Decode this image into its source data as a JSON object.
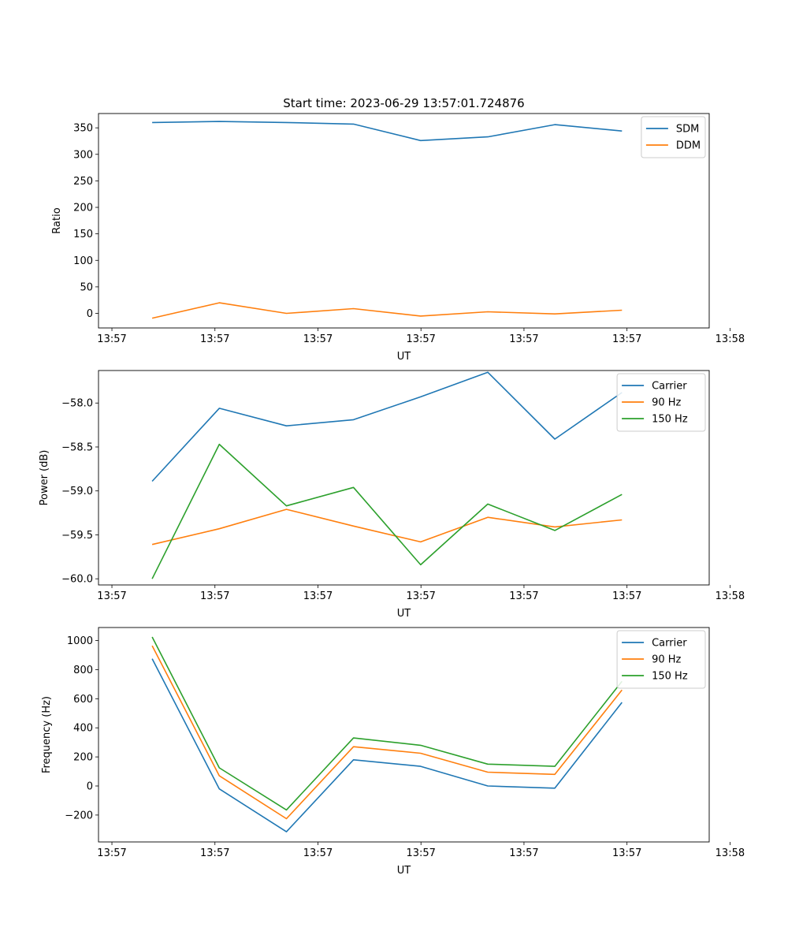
{
  "title": "Start time: 2023-06-29 13:57:01.724876",
  "x_ticks": [
    "13:57",
    "13:57",
    "13:57",
    "13:57",
    "13:57",
    "13:57",
    "13:58"
  ],
  "colors": {
    "blue": "#1f77b4",
    "orange": "#ff7f0e",
    "green": "#2ca02c"
  },
  "chart_data": [
    {
      "type": "line",
      "xlabel": "UT",
      "ylabel": "Ratio",
      "x": [
        1,
        2,
        3,
        4,
        5,
        6,
        7,
        8
      ],
      "xlim": [
        0.2,
        9.3
      ],
      "ylim": [
        -27.5,
        377
      ],
      "yticks": [
        0,
        50,
        100,
        150,
        200,
        250,
        300,
        350
      ],
      "ytick_labels": [
        "0",
        "50",
        "100",
        "150",
        "200",
        "250",
        "300",
        "350"
      ],
      "legend": "top-right",
      "series": [
        {
          "name": "SDM",
          "color": "#1f77b4",
          "values": [
            360,
            362,
            360,
            357,
            326,
            333,
            356,
            344
          ]
        },
        {
          "name": "DDM",
          "color": "#ff7f0e",
          "values": [
            -9,
            20,
            0,
            9,
            -5,
            3,
            -1,
            6
          ]
        }
      ]
    },
    {
      "type": "line",
      "xlabel": "UT",
      "ylabel": "Power (dB)",
      "x": [
        1,
        2,
        3,
        4,
        5,
        6,
        7,
        8
      ],
      "xlim": [
        0.2,
        9.3
      ],
      "ylim": [
        -60.07,
        -57.63
      ],
      "yticks": [
        -58.0,
        -58.5,
        -59.0,
        -59.5,
        -60.0
      ],
      "ytick_labels": [
        "−58.0",
        "−58.5",
        "−59.0",
        "−59.5",
        "−60.0"
      ],
      "legend": "top-right",
      "series": [
        {
          "name": "Carrier",
          "color": "#1f77b4",
          "values": [
            -58.89,
            -58.06,
            -58.26,
            -58.19,
            -57.93,
            -57.65,
            -58.41,
            -57.88
          ]
        },
        {
          "name": "90 Hz",
          "color": "#ff7f0e",
          "values": [
            -59.61,
            -59.43,
            -59.21,
            -59.4,
            -59.58,
            -59.3,
            -59.41,
            -59.33
          ]
        },
        {
          "name": "150 Hz",
          "color": "#2ca02c",
          "values": [
            -60.0,
            -58.47,
            -59.17,
            -58.96,
            -59.84,
            -59.15,
            -59.45,
            -59.04
          ]
        }
      ]
    },
    {
      "type": "line",
      "xlabel": "UT",
      "ylabel": "Frequency (Hz)",
      "x": [
        1,
        2,
        3,
        4,
        5,
        6,
        7,
        8
      ],
      "xlim": [
        0.2,
        9.3
      ],
      "ylim": [
        -385,
        1090
      ],
      "yticks": [
        -200,
        0,
        200,
        400,
        600,
        800,
        1000
      ],
      "ytick_labels": [
        "−200",
        "0",
        "200",
        "400",
        "600",
        "800",
        "1000"
      ],
      "legend": "top-right",
      "series": [
        {
          "name": "Carrier",
          "color": "#1f77b4",
          "values": [
            875,
            -20,
            -315,
            180,
            135,
            0,
            -15,
            575
          ]
        },
        {
          "name": "90 Hz",
          "color": "#ff7f0e",
          "values": [
            965,
            70,
            -225,
            270,
            225,
            95,
            80,
            660
          ]
        },
        {
          "name": "150 Hz",
          "color": "#2ca02c",
          "values": [
            1025,
            125,
            -165,
            330,
            280,
            150,
            135,
            720
          ]
        }
      ]
    }
  ]
}
